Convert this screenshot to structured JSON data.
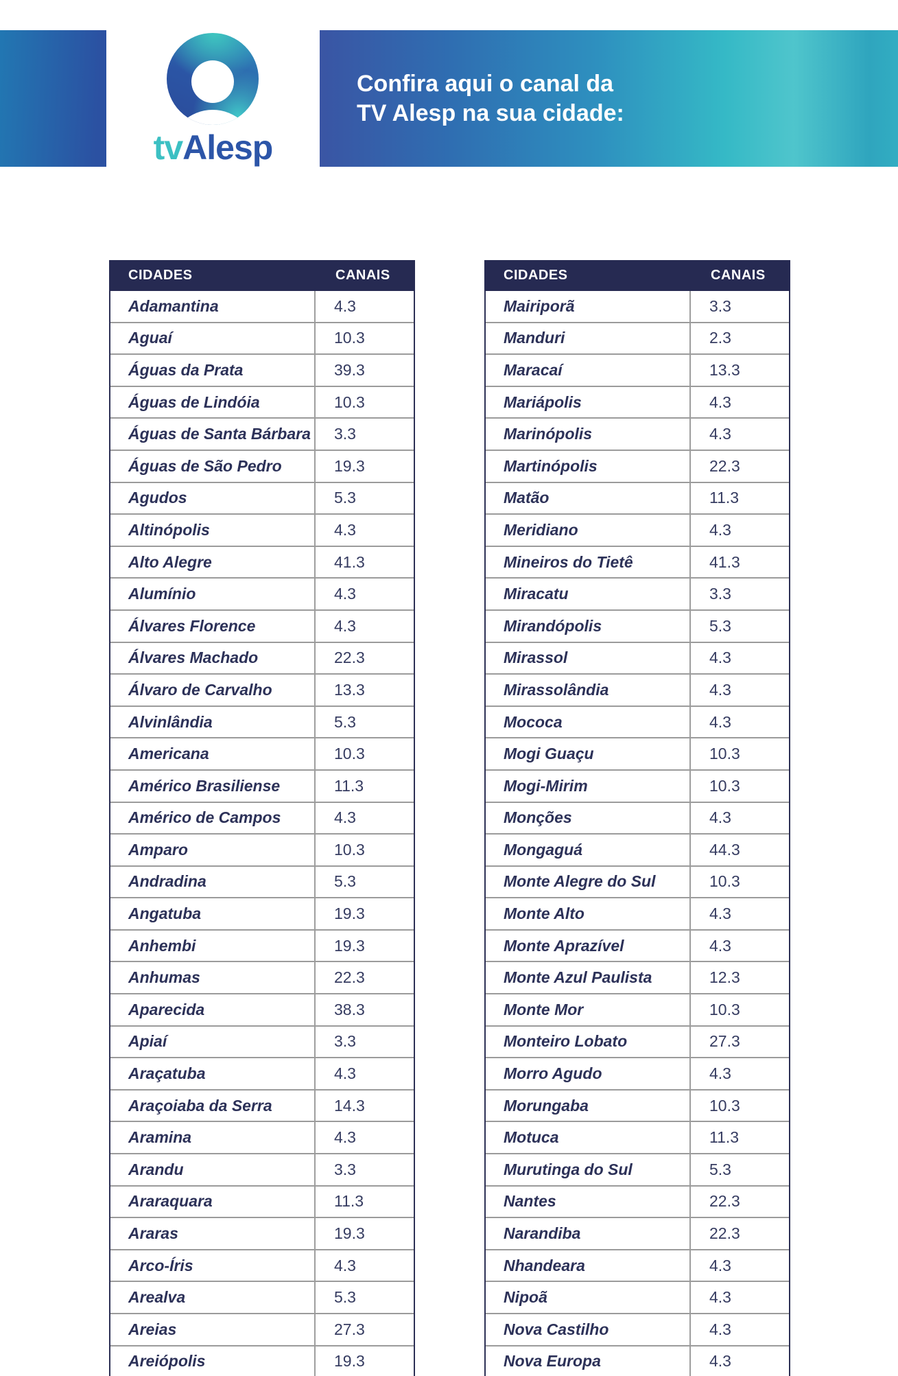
{
  "header": {
    "logo_tv": "tv",
    "logo_alesp": "Alesp",
    "title_line1": "Confira aqui o canal da",
    "title_line2": "TV Alesp na sua cidade:"
  },
  "columns": {
    "city": "CIDADES",
    "channel": "CANAIS"
  },
  "tables": {
    "left": [
      {
        "city": "Adamantina",
        "channel": "4.3"
      },
      {
        "city": "Aguaí",
        "channel": "10.3"
      },
      {
        "city": "Águas da Prata",
        "channel": "39.3"
      },
      {
        "city": "Águas de Lindóia",
        "channel": "10.3"
      },
      {
        "city": "Águas de Santa Bárbara",
        "channel": "3.3"
      },
      {
        "city": "Águas de São Pedro",
        "channel": "19.3"
      },
      {
        "city": "Agudos",
        "channel": "5.3"
      },
      {
        "city": "Altinópolis",
        "channel": "4.3"
      },
      {
        "city": "Alto Alegre",
        "channel": "41.3"
      },
      {
        "city": "Alumínio",
        "channel": "4.3"
      },
      {
        "city": "Álvares Florence",
        "channel": "4.3"
      },
      {
        "city": "Álvares Machado",
        "channel": "22.3"
      },
      {
        "city": "Álvaro de Carvalho",
        "channel": "13.3"
      },
      {
        "city": "Alvinlândia",
        "channel": "5.3"
      },
      {
        "city": "Americana",
        "channel": "10.3"
      },
      {
        "city": "Américo Brasiliense",
        "channel": "11.3"
      },
      {
        "city": "Américo de Campos",
        "channel": "4.3"
      },
      {
        "city": "Amparo",
        "channel": "10.3"
      },
      {
        "city": "Andradina",
        "channel": "5.3"
      },
      {
        "city": "Angatuba",
        "channel": "19.3"
      },
      {
        "city": "Anhembi",
        "channel": "19.3"
      },
      {
        "city": "Anhumas",
        "channel": "22.3"
      },
      {
        "city": "Aparecida",
        "channel": "38.3"
      },
      {
        "city": "Apiaí",
        "channel": "3.3"
      },
      {
        "city": "Araçatuba",
        "channel": "4.3"
      },
      {
        "city": "Araçoiaba da Serra",
        "channel": "14.3"
      },
      {
        "city": "Aramina",
        "channel": "4.3"
      },
      {
        "city": "Arandu",
        "channel": "3.3"
      },
      {
        "city": "Araraquara",
        "channel": "11.3"
      },
      {
        "city": "Araras",
        "channel": "19.3"
      },
      {
        "city": "Arco-Íris",
        "channel": "4.3"
      },
      {
        "city": "Arealva",
        "channel": "5.3"
      },
      {
        "city": "Areias",
        "channel": "27.3"
      },
      {
        "city": "Areiópolis",
        "channel": "19.3"
      }
    ],
    "right": [
      {
        "city": "Mairiporã",
        "channel": "3.3"
      },
      {
        "city": "Manduri",
        "channel": "2.3"
      },
      {
        "city": "Maracaí",
        "channel": "13.3"
      },
      {
        "city": "Mariápolis",
        "channel": "4.3"
      },
      {
        "city": "Marinópolis",
        "channel": "4.3"
      },
      {
        "city": "Martinópolis",
        "channel": "22.3"
      },
      {
        "city": "Matão",
        "channel": "11.3"
      },
      {
        "city": "Meridiano",
        "channel": "4.3"
      },
      {
        "city": "Mineiros do Tietê",
        "channel": "41.3"
      },
      {
        "city": "Miracatu",
        "channel": "3.3"
      },
      {
        "city": "Mirandópolis",
        "channel": "5.3"
      },
      {
        "city": "Mirassol",
        "channel": "4.3"
      },
      {
        "city": "Mirassolândia",
        "channel": "4.3"
      },
      {
        "city": "Mococa",
        "channel": "4.3"
      },
      {
        "city": "Mogi Guaçu",
        "channel": "10.3"
      },
      {
        "city": "Mogi-Mirim",
        "channel": "10.3"
      },
      {
        "city": "Monções",
        "channel": "4.3"
      },
      {
        "city": "Mongaguá",
        "channel": "44.3"
      },
      {
        "city": "Monte Alegre do Sul",
        "channel": "10.3"
      },
      {
        "city": "Monte Alto",
        "channel": "4.3"
      },
      {
        "city": "Monte Aprazível",
        "channel": "4.3"
      },
      {
        "city": "Monte Azul Paulista",
        "channel": "12.3"
      },
      {
        "city": "Monte Mor",
        "channel": "10.3"
      },
      {
        "city": "Monteiro Lobato",
        "channel": "27.3"
      },
      {
        "city": "Morro Agudo",
        "channel": "4.3"
      },
      {
        "city": "Morungaba",
        "channel": "10.3"
      },
      {
        "city": "Motuca",
        "channel": "11.3"
      },
      {
        "city": "Murutinga do Sul",
        "channel": "5.3"
      },
      {
        "city": "Nantes",
        "channel": "22.3"
      },
      {
        "city": "Narandiba",
        "channel": "22.3"
      },
      {
        "city": "Nhandeara",
        "channel": "4.3"
      },
      {
        "city": "Nipoã",
        "channel": "4.3"
      },
      {
        "city": "Nova Castilho",
        "channel": "4.3"
      },
      {
        "city": "Nova Europa",
        "channel": "4.3"
      }
    ]
  },
  "colors": {
    "band_blue": "#3a55a4",
    "band_teal": "#35b9c6",
    "left_block_blue": "#2b51a2",
    "table_header_navy": "#262a52",
    "city_text": "#2c3158",
    "channel_text": "#363c61",
    "row_separator": "#9b9b9b",
    "logo_tv_teal": "#3cc0c3",
    "logo_alesp_blue": "#2c55a8"
  }
}
